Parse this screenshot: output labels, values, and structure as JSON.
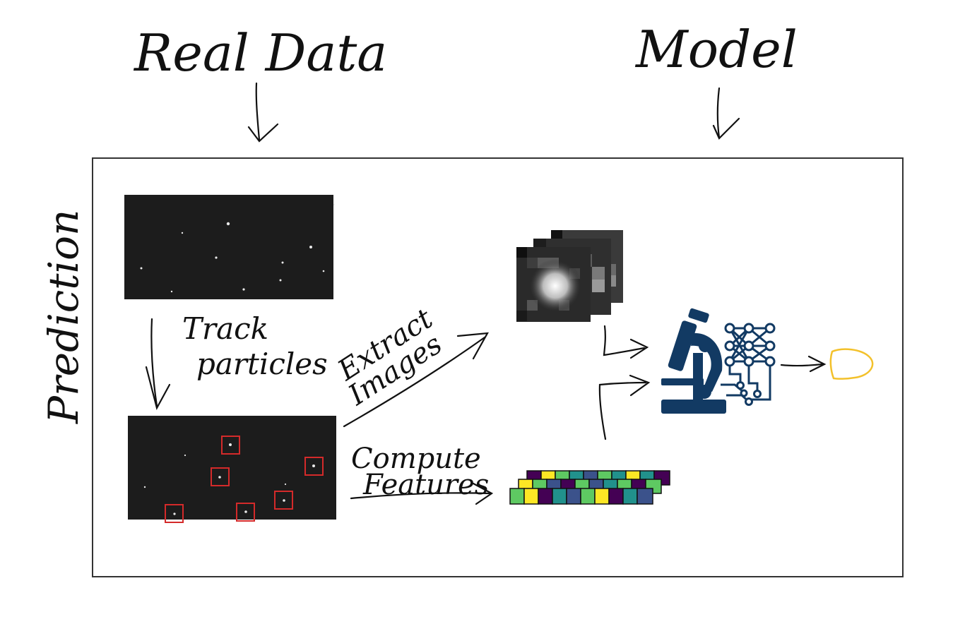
{
  "labels": {
    "real_data": "Real Data",
    "model": "Model",
    "prediction": "Prediction",
    "track_particles_1": "Track",
    "track_particles_2": "particles",
    "extract_images_1": "Extract",
    "extract_images_2": "Images",
    "compute_features_1": "Compute",
    "compute_features_2": "Features"
  },
  "colors": {
    "ink": "#111111",
    "frame": "#333333",
    "detection_box": "#d42a2a",
    "model_icon": "#123a63",
    "output_blob": "#f3c12b",
    "viridis": [
      "#440154",
      "#3b528b",
      "#21918c",
      "#5ec962",
      "#fde725"
    ]
  },
  "icons": {
    "model_icon": "microscope-neural-network-icon",
    "output_icon": "output-blob-icon"
  }
}
